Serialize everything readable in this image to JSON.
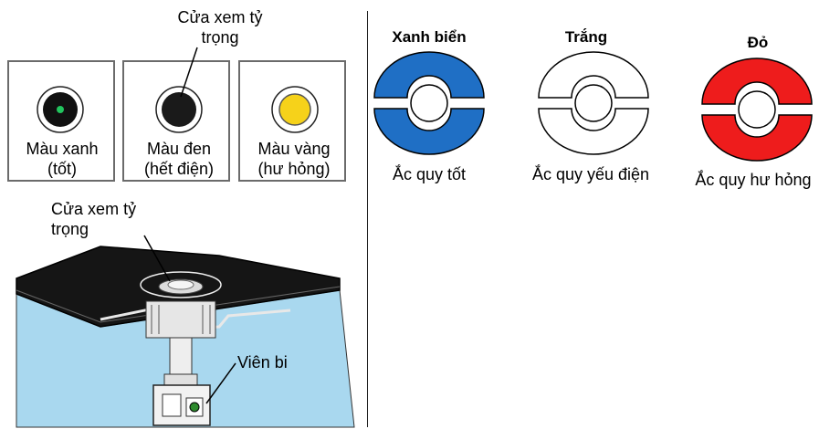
{
  "top_panel": {
    "callout": "Cửa xem tỷ\ntrọng",
    "indicators": [
      {
        "label": "Màu xanh\n(tốt)",
        "center_color": "#22c55e",
        "dot_color": "#111111"
      },
      {
        "label": "Màu đen\n(hết điện)",
        "dot_color": "#1a1a1a"
      },
      {
        "label": "Màu vàng\n(hư hỏng)",
        "dot_color": "#f6d21a"
      }
    ]
  },
  "cutaway": {
    "callout": "Cửa xem tỷ\ntrọng",
    "ball_label": "Viên bi"
  },
  "legend": [
    {
      "title": "Xanh biển",
      "caption": "Ắc quy tốt",
      "color": "#1f6fc5"
    },
    {
      "title": "Trắng",
      "caption": "Ắc quy yếu điện",
      "color": "#ffffff"
    },
    {
      "title": "Đỏ",
      "caption": "Ắc quy hư hỏng",
      "color": "#ee1c1c"
    }
  ]
}
